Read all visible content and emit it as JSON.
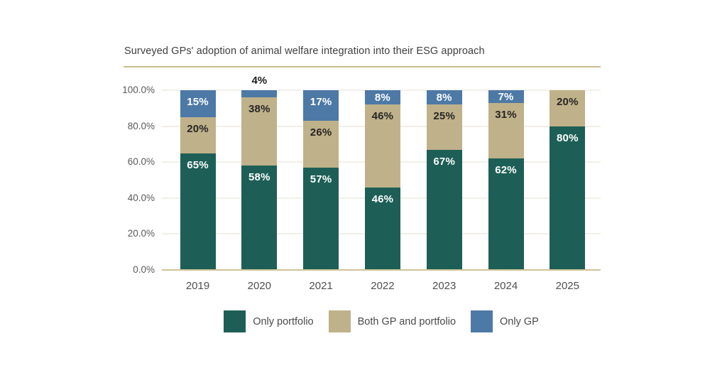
{
  "colors": {
    "background": "#ffffff",
    "divider": "#c9bc92",
    "axis_line": "#cfc399",
    "grid_line": "#f2efe7",
    "title_text": "#3e3e3e",
    "tick_text": "#5a5a5a",
    "teal": "#1d5f56",
    "tan": "#bfb189",
    "blue": "#4d79a6"
  },
  "chart_data": {
    "type": "bar",
    "stacked": true,
    "title": "Surveyed GPs' adoption of animal welfare integration into their ESG approach",
    "categories": [
      "2019",
      "2020",
      "2021",
      "2022",
      "2023",
      "2024",
      "2025"
    ],
    "series": [
      {
        "name": "Only portfolio",
        "color": "#1d5f56",
        "label_color": "#ffffff",
        "values": [
          65,
          58,
          57,
          46,
          67,
          62,
          80
        ]
      },
      {
        "name": "Both GP and portfolio",
        "color": "#bfb189",
        "label_color": "#262626",
        "values": [
          20,
          38,
          26,
          46,
          25,
          31,
          20
        ]
      },
      {
        "name": "Only GP",
        "color": "#4d79a6",
        "label_color": "#ffffff",
        "values": [
          15,
          4,
          17,
          8,
          8,
          7,
          0
        ]
      }
    ],
    "y_ticks": [
      "100.0%",
      "80.0%",
      "60.0%",
      "40.0%",
      "20.0%",
      "0.0%"
    ],
    "ylim": [
      0,
      100
    ],
    "grid": true,
    "legend_position": "bottom",
    "xlabel": "",
    "ylabel": "",
    "data_label_suffix": "%"
  }
}
